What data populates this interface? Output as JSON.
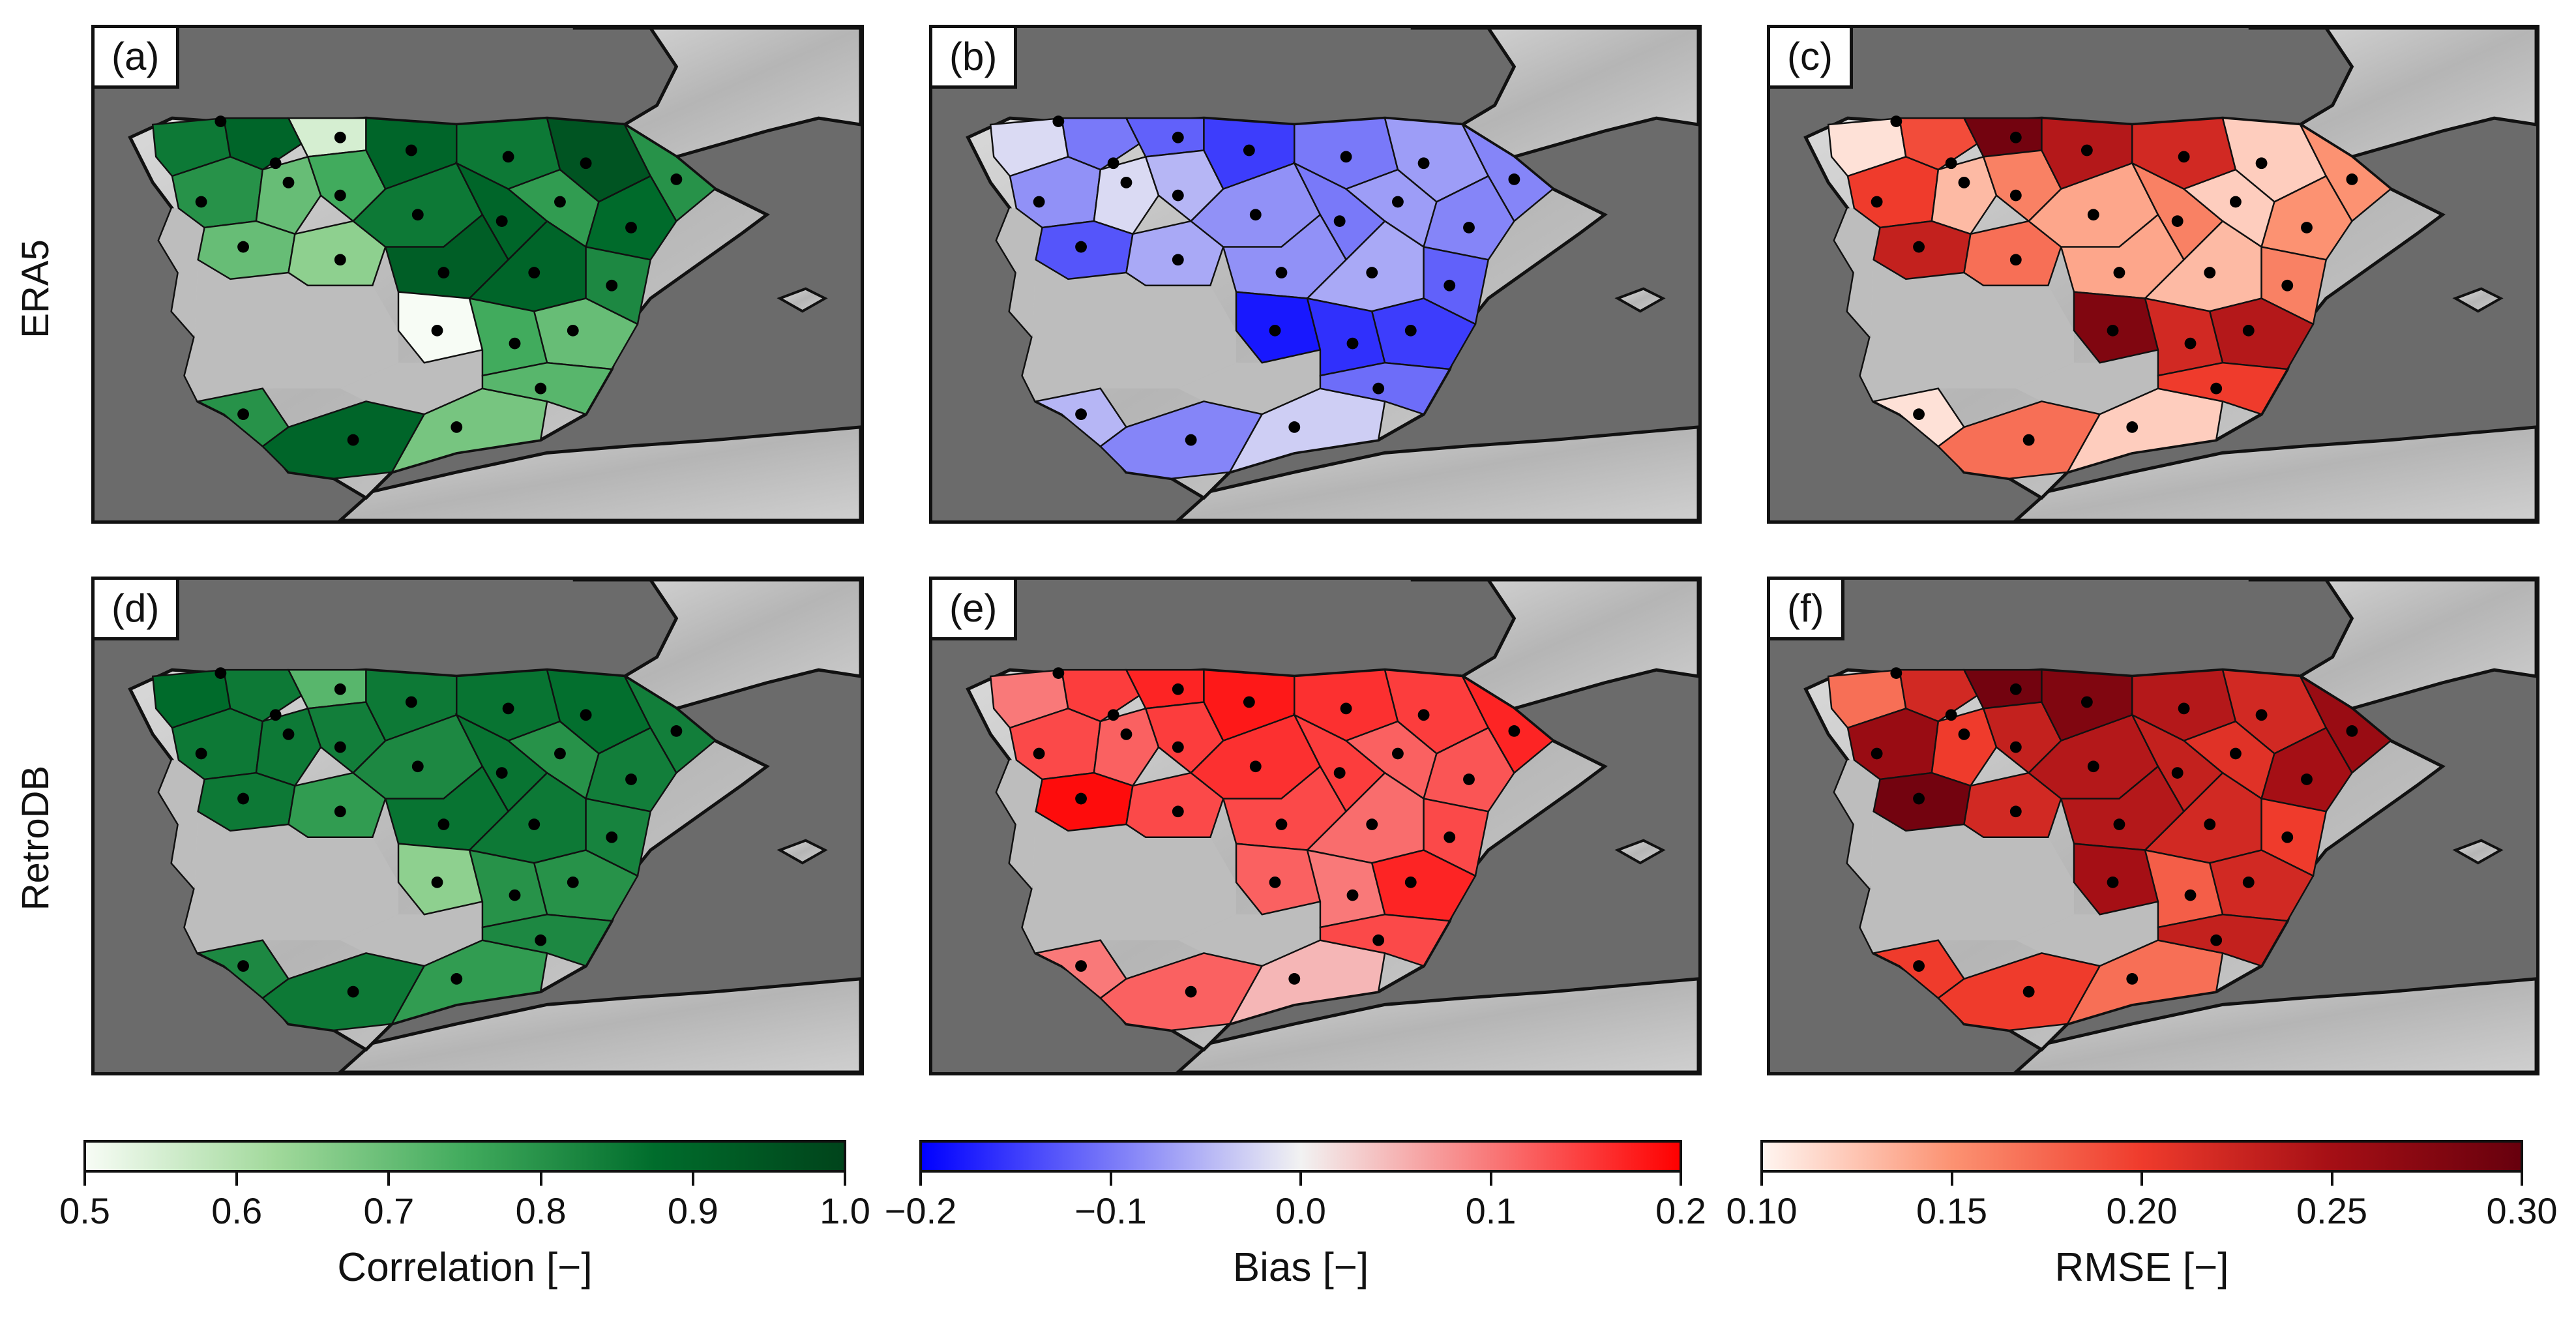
{
  "rows": [
    {
      "label": "ERA5"
    },
    {
      "label": "RetroDB"
    }
  ],
  "panels": [
    {
      "id": "a",
      "label": "(a)",
      "metric": "correlation",
      "row": 0,
      "col": 0,
      "region_values": [
        0.85,
        0.9,
        0.55,
        0.8,
        0.7,
        0.75,
        0.9,
        0.85,
        0.95,
        0.8,
        0.7,
        0.65,
        0.85,
        0.9,
        0.78,
        0.88,
        0.92,
        0.9,
        0.82,
        0.5,
        0.75,
        0.7,
        0.8,
        0.9,
        0.68,
        0.72
      ]
    },
    {
      "id": "b",
      "label": "(b)",
      "metric": "bias",
      "row": 0,
      "col": 1,
      "region_values": [
        -0.02,
        -0.1,
        -0.12,
        -0.08,
        -0.02,
        -0.05,
        -0.15,
        -0.1,
        -0.07,
        -0.09,
        -0.13,
        -0.06,
        -0.08,
        -0.1,
        -0.07,
        -0.09,
        -0.08,
        -0.06,
        -0.12,
        -0.18,
        -0.16,
        -0.15,
        -0.05,
        -0.09,
        -0.03,
        -0.11
      ]
    },
    {
      "id": "c",
      "label": "(c)",
      "metric": "rmse",
      "row": 0,
      "col": 2,
      "region_values": [
        0.11,
        0.19,
        0.29,
        0.2,
        0.13,
        0.16,
        0.24,
        0.22,
        0.12,
        0.15,
        0.23,
        0.17,
        0.14,
        0.16,
        0.12,
        0.15,
        0.14,
        0.13,
        0.16,
        0.28,
        0.22,
        0.24,
        0.11,
        0.17,
        0.12,
        0.2
      ]
    },
    {
      "id": "d",
      "label": "(d)",
      "metric": "correlation",
      "row": 1,
      "col": 0,
      "region_values": [
        0.88,
        0.85,
        0.72,
        0.85,
        0.85,
        0.84,
        0.85,
        0.86,
        0.87,
        0.84,
        0.85,
        0.78,
        0.82,
        0.86,
        0.8,
        0.84,
        0.86,
        0.85,
        0.83,
        0.65,
        0.8,
        0.8,
        0.82,
        0.85,
        0.78,
        0.82
      ]
    },
    {
      "id": "e",
      "label": "(e)",
      "metric": "bias",
      "row": 1,
      "col": 1,
      "region_values": [
        0.1,
        0.15,
        0.17,
        0.14,
        0.12,
        0.15,
        0.18,
        0.16,
        0.15,
        0.17,
        0.19,
        0.14,
        0.16,
        0.15,
        0.12,
        0.13,
        0.14,
        0.11,
        0.14,
        0.12,
        0.1,
        0.17,
        0.1,
        0.12,
        0.05,
        0.14
      ]
    },
    {
      "id": "f",
      "label": "(f)",
      "metric": "rmse",
      "row": 1,
      "col": 2,
      "region_values": [
        0.17,
        0.22,
        0.29,
        0.26,
        0.2,
        0.23,
        0.28,
        0.24,
        0.22,
        0.26,
        0.29,
        0.22,
        0.24,
        0.23,
        0.21,
        0.25,
        0.24,
        0.22,
        0.2,
        0.25,
        0.18,
        0.22,
        0.2,
        0.2,
        0.17,
        0.23
      ]
    }
  ],
  "colorbars": [
    {
      "metric": "correlation",
      "title": "Correlation [−]",
      "min": 0.5,
      "max": 1.0,
      "ticks": [
        "0.5",
        "0.6",
        "0.7",
        "0.8",
        "0.9",
        "1.0"
      ],
      "colors": [
        "#f7fcf5",
        "#a1d99b",
        "#41ab5d",
        "#006d2c",
        "#00441b"
      ]
    },
    {
      "metric": "bias",
      "title": "Bias [−]",
      "min": -0.2,
      "max": 0.2,
      "ticks": [
        "−0.2",
        "−0.1",
        "0.0",
        "0.1",
        "0.2"
      ],
      "colors": [
        "#0000ff",
        "#f2f2f2",
        "#ff0000"
      ]
    },
    {
      "metric": "rmse",
      "title": "RMSE [−]",
      "min": 0.1,
      "max": 0.3,
      "ticks": [
        "0.10",
        "0.15",
        "0.20",
        "0.25",
        "0.30"
      ],
      "colors": [
        "#fff5f0",
        "#fc9272",
        "#ef3b2c",
        "#a50f15",
        "#67000d"
      ]
    }
  ],
  "chart_data": {
    "type": "heatmap",
    "title": "",
    "description_rows": [
      "ERA5",
      "RetroDB"
    ],
    "metrics": [
      "Correlation",
      "Bias",
      "RMSE"
    ],
    "correlation_range": [
      0.5,
      1.0
    ],
    "bias_range": [
      -0.2,
      0.2
    ],
    "rmse_range": [
      0.1,
      0.3
    ]
  }
}
